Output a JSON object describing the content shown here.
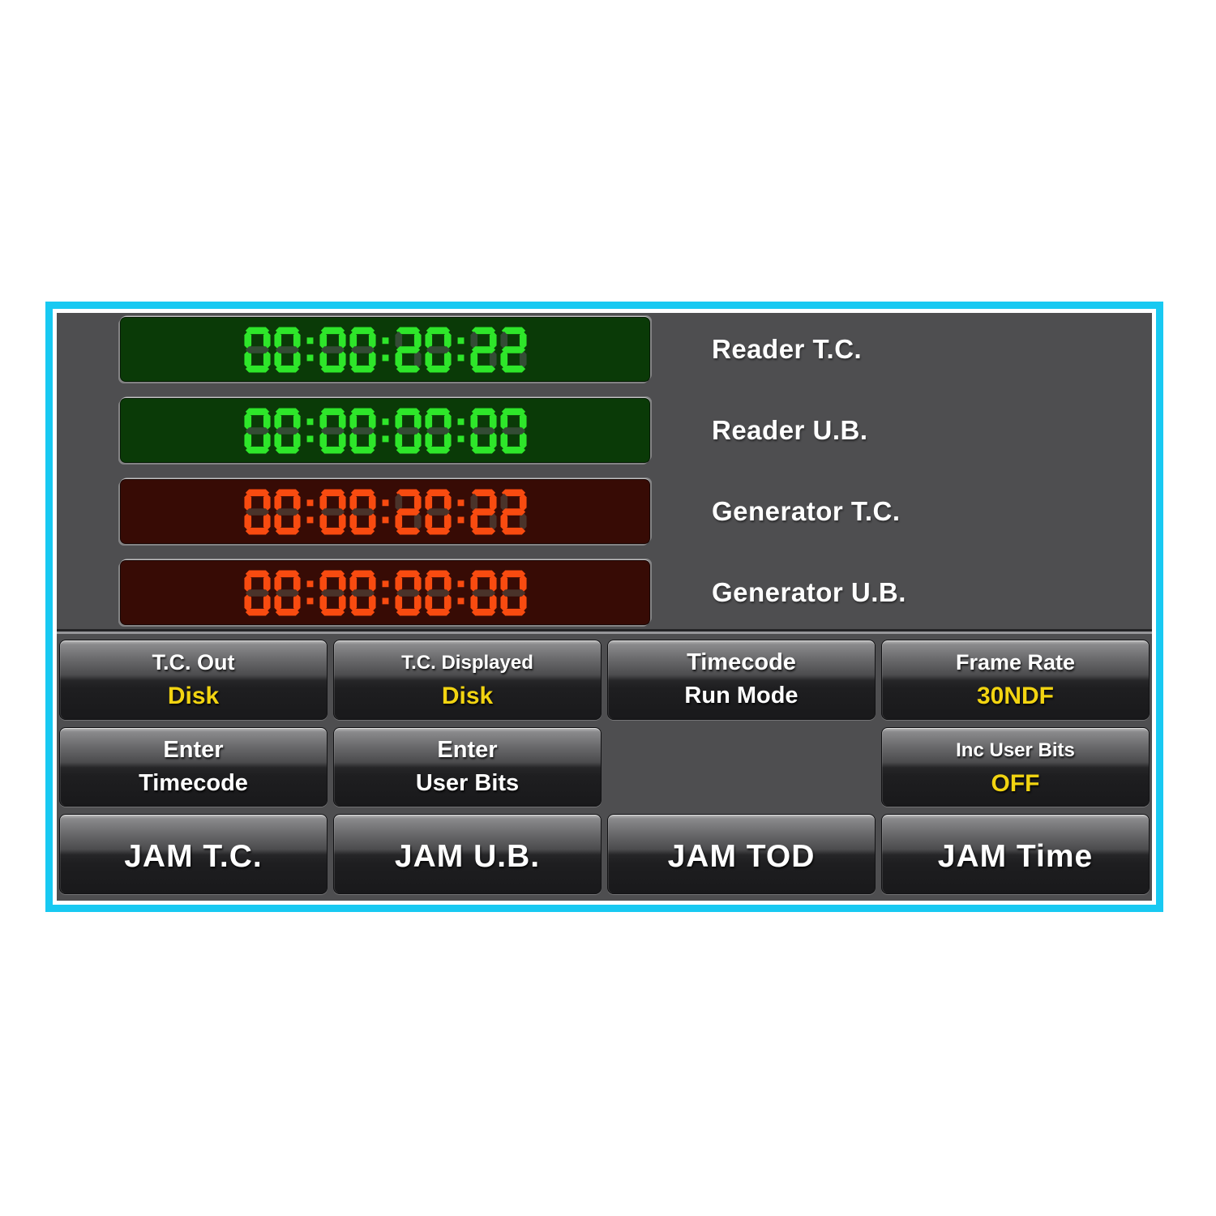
{
  "window": {
    "accent_border_color": "#18c9f2",
    "panel_background": "#4e4e50"
  },
  "displays": [
    {
      "label": "Reader T.C.",
      "value": "00:00:20:22",
      "scheme": "green"
    },
    {
      "label": "Reader U.B.",
      "value": "00:00:00:00",
      "scheme": "green"
    },
    {
      "label": "Generator T.C.",
      "value": "00:00:20:22",
      "scheme": "red"
    },
    {
      "label": "Generator U.B.",
      "value": "00:00:00:00",
      "scheme": "red"
    }
  ],
  "lcd_schemes": {
    "green": {
      "bg": "#0a3a07",
      "lit": "#2ee62a",
      "ghost": "#344c35"
    },
    "red": {
      "bg": "#370b05",
      "lit": "#f84b10",
      "ghost": "#4a332a"
    }
  },
  "buttons": {
    "tc_out": {
      "title": "T.C. Out",
      "value": "Disk"
    },
    "tc_displayed": {
      "title": "T.C. Displayed",
      "value": "Disk"
    },
    "timecode_run_mode": {
      "line1": "Timecode",
      "line2": "Run Mode"
    },
    "frame_rate": {
      "title": "Frame Rate",
      "value": "30NDF"
    },
    "enter_timecode": {
      "line1": "Enter",
      "line2": "Timecode"
    },
    "enter_user_bits": {
      "line1": "Enter",
      "line2": "User Bits"
    },
    "inc_user_bits": {
      "title": "Inc User Bits",
      "value": "OFF"
    },
    "jam_tc": {
      "label": "JAM T.C."
    },
    "jam_ub": {
      "label": "JAM U.B."
    },
    "jam_tod": {
      "label": "JAM TOD"
    },
    "jam_time": {
      "label": "JAM Time"
    }
  },
  "colors": {
    "value_yellow": "#f2d411",
    "label_white": "#ffffff"
  }
}
